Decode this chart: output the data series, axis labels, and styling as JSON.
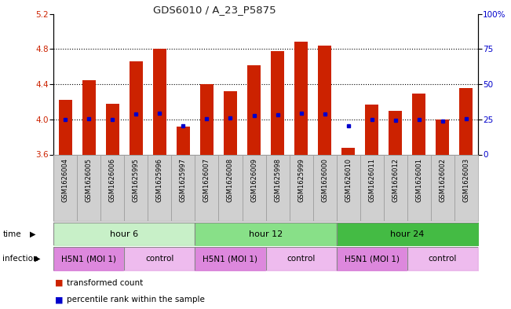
{
  "title": "GDS6010 / A_23_P5875",
  "samples": [
    "GSM1626004",
    "GSM1626005",
    "GSM1626006",
    "GSM1625995",
    "GSM1625996",
    "GSM1625997",
    "GSM1626007",
    "GSM1626008",
    "GSM1626009",
    "GSM1625998",
    "GSM1625999",
    "GSM1626000",
    "GSM1626010",
    "GSM1626011",
    "GSM1626012",
    "GSM1626001",
    "GSM1626002",
    "GSM1626003"
  ],
  "bar_tops": [
    4.22,
    4.45,
    4.18,
    4.66,
    4.8,
    3.92,
    4.4,
    4.32,
    4.62,
    4.78,
    4.88,
    4.84,
    3.68,
    4.17,
    4.1,
    4.29,
    4.0,
    4.36
  ],
  "bar_bottom": 3.6,
  "blue_markers": [
    4.0,
    4.01,
    4.0,
    4.06,
    4.07,
    3.93,
    4.01,
    4.02,
    4.04,
    4.05,
    4.07,
    4.06,
    3.93,
    4.0,
    3.99,
    4.0,
    3.98,
    4.01
  ],
  "bar_color": "#cc2200",
  "marker_color": "#0000cc",
  "ylim_left": [
    3.6,
    5.2
  ],
  "ylim_right": [
    0,
    100
  ],
  "yticks_left": [
    3.6,
    4.0,
    4.4,
    4.8,
    5.2
  ],
  "yticks_right": [
    0,
    25,
    50,
    75,
    100
  ],
  "dotted_lines": [
    4.0,
    4.4,
    4.8
  ],
  "time_colors": [
    "#c8f0c8",
    "#88e088",
    "#44bb44"
  ],
  "time_groups": [
    {
      "label": "hour 6",
      "start": 0,
      "end": 6
    },
    {
      "label": "hour 12",
      "start": 6,
      "end": 12
    },
    {
      "label": "hour 24",
      "start": 12,
      "end": 18
    }
  ],
  "h5n1_color": "#dd88dd",
  "ctrl_color": "#eebbee",
  "infect_data": [
    [
      0,
      3,
      "H5N1 (MOI 1)"
    ],
    [
      3,
      6,
      "control"
    ],
    [
      6,
      9,
      "H5N1 (MOI 1)"
    ],
    [
      9,
      12,
      "control"
    ],
    [
      12,
      15,
      "H5N1 (MOI 1)"
    ],
    [
      15,
      18,
      "control"
    ]
  ],
  "background_color": "#ffffff",
  "plot_bg": "#ffffff",
  "bar_width": 0.55,
  "label_bg": "#d0d0d0",
  "grid_color": "#000000"
}
